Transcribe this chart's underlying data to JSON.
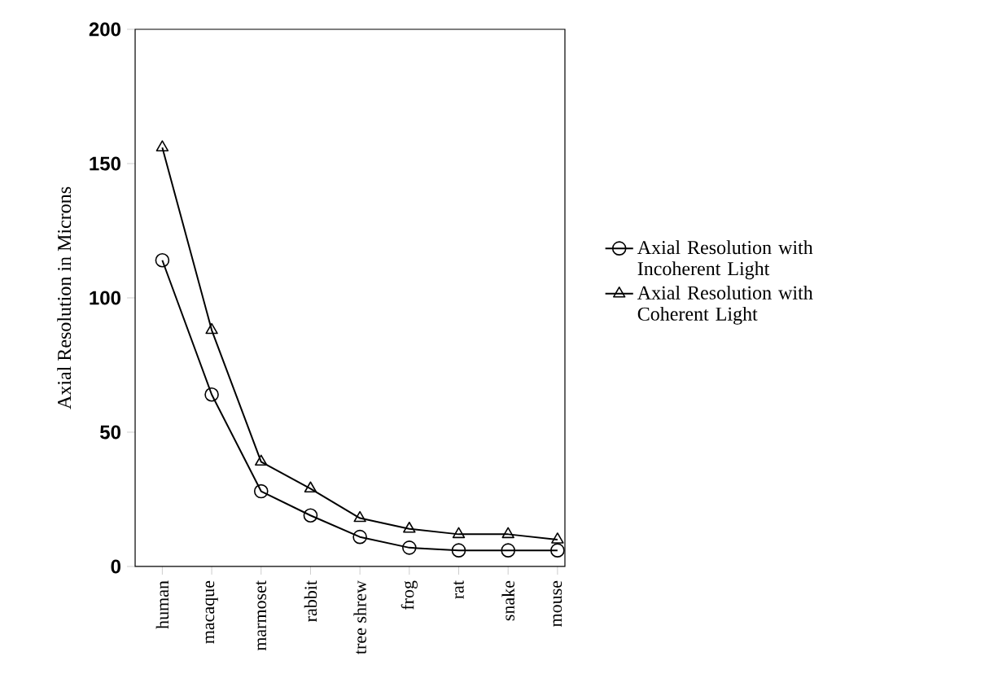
{
  "chart_data": {
    "type": "line",
    "ylabel": "Axial Resolution in Microns",
    "categories": [
      "human",
      "macaque",
      "marmoset",
      "rabbit",
      "tree shrew",
      "frog",
      "rat",
      "snake",
      "mouse"
    ],
    "series": [
      {
        "name": "Axial Resolution with Incoherent Light",
        "color": "#000000",
        "marker": "circle",
        "values": [
          114,
          64,
          28,
          19,
          11,
          7,
          6,
          6,
          6
        ]
      },
      {
        "name": "Axial Resolution with Coherent Light",
        "color": "#000000",
        "marker": "triangle",
        "values": [
          156,
          88,
          39,
          29,
          18,
          14,
          12,
          12,
          10
        ]
      }
    ],
    "ylim": [
      0,
      200
    ],
    "yticks": [
      0,
      50,
      100,
      150,
      200
    ],
    "legend": "right",
    "grid": false,
    "line_style": "solid"
  }
}
